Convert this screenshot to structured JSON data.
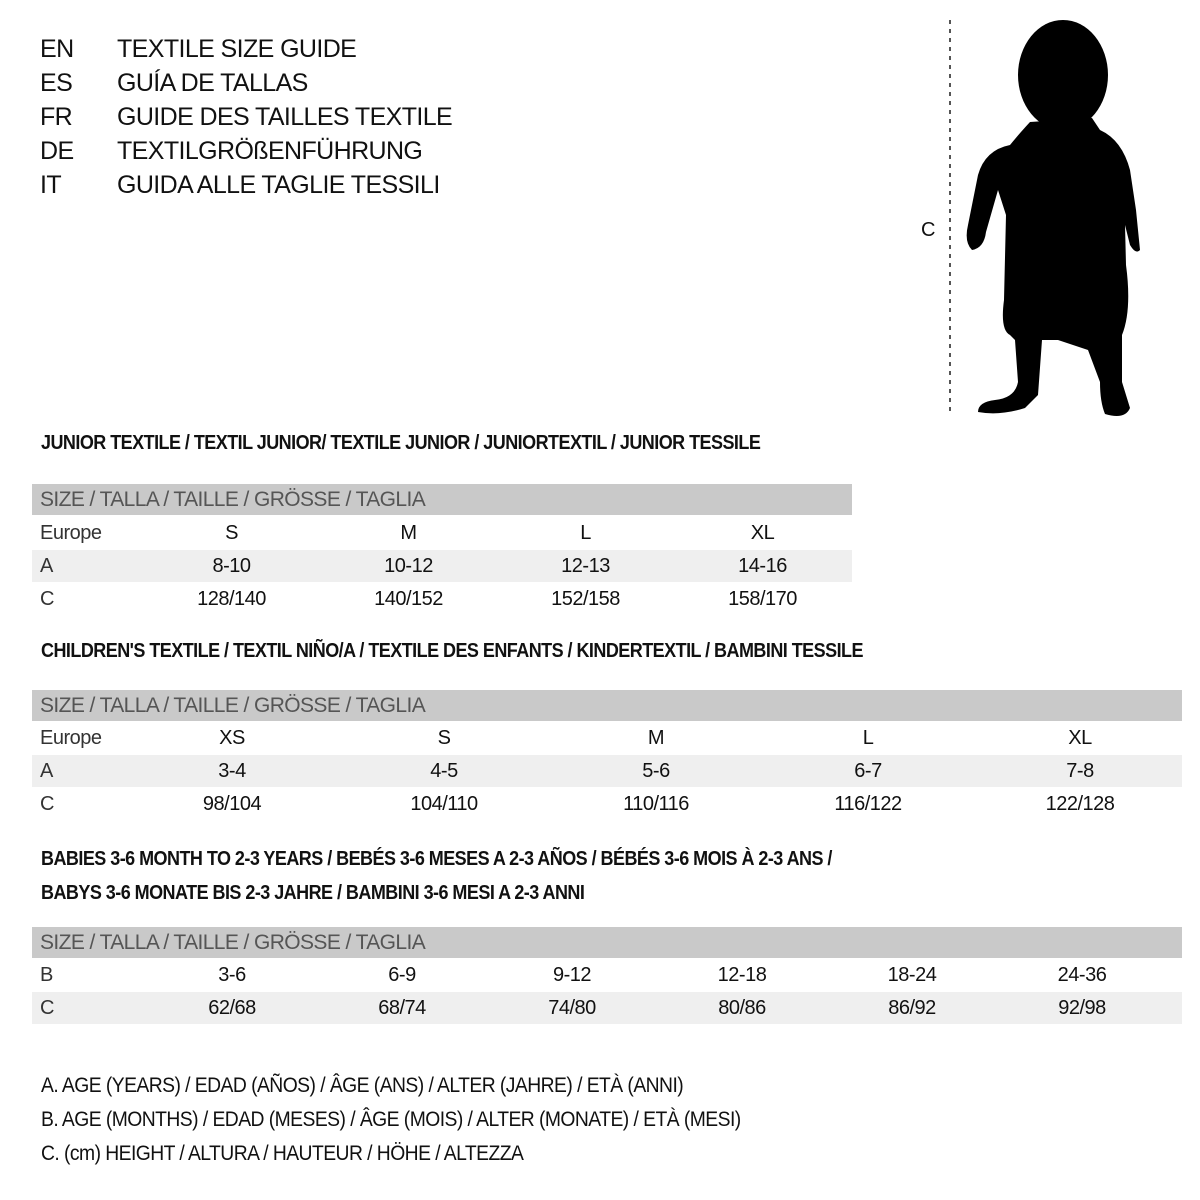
{
  "title_languages": [
    {
      "code": "EN",
      "text": "TEXTILE SIZE GUIDE"
    },
    {
      "code": "ES",
      "text": "GUÍA DE TALLAS"
    },
    {
      "code": "FR",
      "text": "GUIDE DES TAILLES TEXTILE"
    },
    {
      "code": "DE",
      "text": "TEXTILGRÖßENFÜHRUNG"
    },
    {
      "code": "IT",
      "text": "GUIDA ALLE TAGLIE TESSILI"
    }
  ],
  "figure": {
    "measure_label": "C",
    "icon": "baby-silhouette"
  },
  "size_header": "SIZE / TALLA / TAILLE / GRÖSSE / TAGLIA",
  "sections": [
    {
      "title": [
        "JUNIOR TEXTILE / TEXTIL JUNIOR/ TEXTILE JUNIOR / JUNIORTEXTIL / JUNIOR TESSILE"
      ],
      "rows": [
        {
          "label": "Europe",
          "values": [
            "S",
            "M",
            "L",
            "XL"
          ]
        },
        {
          "label": "A",
          "values": [
            "8-10",
            "10-12",
            "12-13",
            "14-16"
          ]
        },
        {
          "label": "C",
          "values": [
            "128/140",
            "140/152",
            "152/158",
            "158/170"
          ]
        }
      ]
    },
    {
      "title": [
        "CHILDREN'S TEXTILE / TEXTIL NIÑO/A / TEXTILE DES ENFANTS / KINDERTEXTIL / BAMBINI TESSILE"
      ],
      "rows": [
        {
          "label": "Europe",
          "values": [
            "XS",
            "S",
            "M",
            "L",
            "XL"
          ]
        },
        {
          "label": "A",
          "values": [
            "3-4",
            "4-5",
            "5-6",
            "6-7",
            "7-8"
          ]
        },
        {
          "label": "C",
          "values": [
            "98/104",
            "104/110",
            "110/116",
            "116/122",
            "122/128"
          ]
        }
      ]
    },
    {
      "title": [
        "BABIES 3-6 MONTH TO 2-3 YEARS / BEBÉS 3-6 MESES A 2-3 AÑOS / BÉBÉS 3-6 MOIS À 2-3 ANS /",
        "BABYS 3-6 MONATE BIS 2-3 JAHRE / BAMBINI 3-6 MESI A 2-3 ANNI"
      ],
      "rows": [
        {
          "label": "B",
          "values": [
            "3-6",
            "6-9",
            "9-12",
            "12-18",
            "18-24",
            "24-36"
          ]
        },
        {
          "label": "C",
          "values": [
            "62/68",
            "68/74",
            "74/80",
            "80/86",
            "86/92",
            "92/98"
          ]
        }
      ]
    }
  ],
  "legend": [
    "A. AGE (YEARS) / EDAD (AÑOS) / ÂGE (ANS) / ALTER (JAHRE) / ETÀ (ANNI)",
    "B. AGE (MONTHS) / EDAD (MESES) / ÂGE (MOIS) / ALTER (MONATE) / ETÀ (MESI)",
    "C. (cm) HEIGHT / ALTURA / HAUTEUR / HÖHE / ALTEZZA"
  ],
  "colors": {
    "header_bg": "#c9c9c9",
    "row_alt_bg": "#efefef"
  }
}
